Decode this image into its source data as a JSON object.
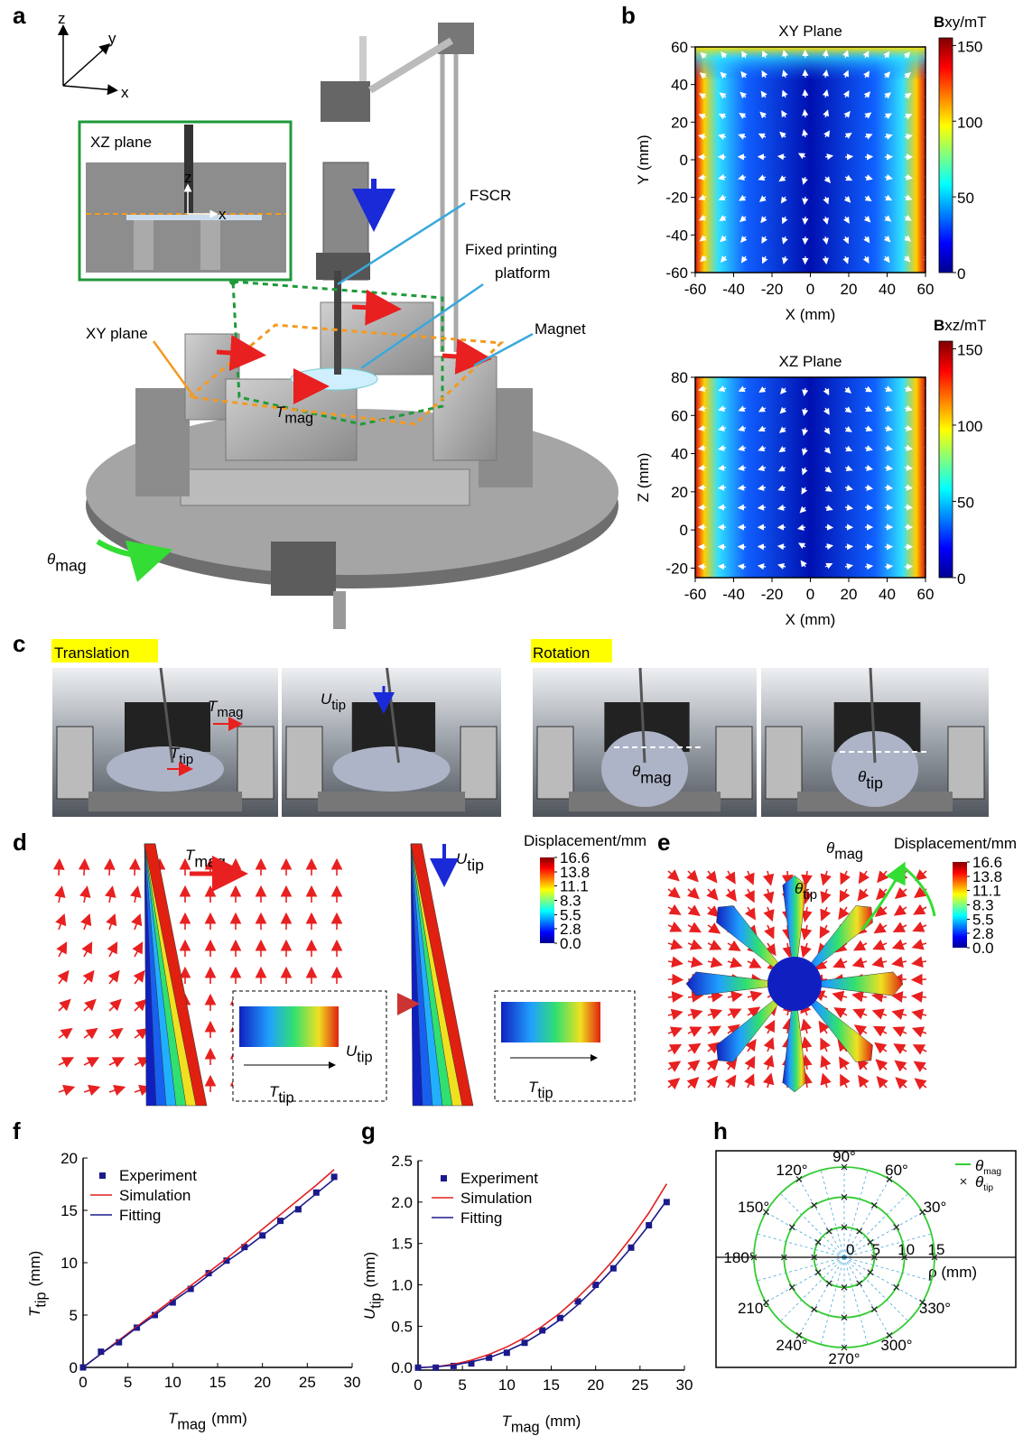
{
  "panel_labels": [
    "a",
    "b",
    "c",
    "d",
    "e",
    "f",
    "g",
    "h"
  ],
  "a": {
    "axes": [
      "z",
      "y",
      "x"
    ],
    "inset_title": "XZ plane",
    "inset_axes": [
      "z",
      "x"
    ],
    "fscr": "FSCR",
    "platform": [
      "Fixed printing",
      "platform"
    ],
    "magnet": "Magnet",
    "xy_plane": "XY plane",
    "t_mag": {
      "symbol": "T",
      "sub": "mag"
    },
    "theta_mag": {
      "symbol": "θ",
      "sub": "mag"
    }
  },
  "c": {
    "translation": "Translation",
    "rotation": "Rotation",
    "t_mag": {
      "symbol": "T",
      "sub": "mag"
    },
    "t_tip": {
      "symbol": "T",
      "sub": "tip"
    },
    "u_tip": {
      "symbol": "U",
      "sub": "tip"
    },
    "theta_mag": {
      "symbol": "θ",
      "sub": "mag"
    },
    "theta_tip": {
      "symbol": "θ",
      "sub": "tip"
    }
  },
  "d": {
    "t_mag": {
      "symbol": "T",
      "sub": "mag"
    },
    "u_tip": {
      "symbol": "U",
      "sub": "tip"
    },
    "inset_left": {
      "u_tip": {
        "symbol": "U",
        "sub": "tip"
      },
      "t_tip": {
        "symbol": "T",
        "sub": "tip"
      }
    },
    "inset_right": {
      "t_tip": {
        "symbol": "T",
        "sub": "tip"
      }
    },
    "colorbar": {
      "title": "Displacement/mm",
      "lim": [
        0,
        16.6
      ],
      "ticks": [
        16.6,
        13.8,
        11.1,
        8.3,
        5.5,
        2.8,
        {
          "value": 0,
          "label": "0.0"
        }
      ]
    }
  },
  "e": {
    "theta_mag": {
      "symbol": "θ",
      "sub": "mag"
    },
    "theta_tip": {
      "symbol": "θ",
      "sub": "tip"
    },
    "colorbar": {
      "title": "Displacement/mm",
      "lim": [
        0,
        16.6
      ],
      "ticks": [
        16.6,
        13.8,
        11.1,
        8.3,
        5.5,
        2.8,
        {
          "value": 0,
          "label": "0.0"
        }
      ]
    }
  },
  "chart_data": [
    {
      "type": "heatmap",
      "title": "XY Plane",
      "xlabel": "X (mm)",
      "ylabel": "Y (mm)",
      "xlim": [
        -60,
        60
      ],
      "ylim": [
        -60,
        60
      ],
      "xticks": [
        -60,
        -40,
        -20,
        0,
        20,
        40,
        60
      ],
      "yticks": [
        -60,
        -40,
        -20,
        0,
        20,
        40,
        60
      ],
      "colorbar_label": {
        "bold": "B",
        "rest": "xy/mT"
      },
      "clim": [
        0,
        155
      ],
      "cticks": [
        0,
        50,
        100,
        150
      ]
    },
    {
      "type": "heatmap",
      "title": "XZ Plane",
      "xlabel": "X (mm)",
      "ylabel": "Z (mm)",
      "xlim": [
        -60,
        60
      ],
      "ylim": [
        -25,
        80
      ],
      "xticks": [
        -60,
        -40,
        -20,
        0,
        20,
        40,
        60
      ],
      "yticks": [
        -20,
        0,
        20,
        40,
        60,
        80
      ],
      "colorbar_label": {
        "bold": "B",
        "rest": "xz/mT"
      },
      "clim": [
        0,
        155
      ],
      "cticks": [
        0,
        50,
        100,
        150
      ]
    },
    {
      "type": "line",
      "xlabel": {
        "symbol": "T",
        "sub": "mag",
        "unit": "(mm)"
      },
      "ylabel": {
        "symbol": "T",
        "sub": "tip",
        "unit": "(mm)"
      },
      "xlim": [
        0,
        30
      ],
      "ylim": [
        0,
        20
      ],
      "xticks": [
        0,
        5,
        10,
        15,
        20,
        25,
        30
      ],
      "yticks": [
        0,
        5,
        10,
        15,
        20
      ],
      "x": [
        0,
        2,
        4,
        6,
        8,
        10,
        12,
        14,
        16,
        18,
        20,
        22,
        24,
        26,
        28
      ],
      "series": [
        {
          "name": "Experiment",
          "color": "#1a1a8c",
          "style": "points",
          "values": [
            0,
            1.5,
            2.4,
            3.8,
            5.0,
            6.2,
            7.5,
            9.0,
            10.2,
            11.5,
            12.6,
            14.0,
            15.1,
            16.7,
            18.2
          ]
        },
        {
          "name": "Simulation",
          "color": "#e02020",
          "style": "line",
          "values": [
            0,
            1.3,
            2.6,
            3.9,
            5.2,
            6.5,
            7.8,
            9.1,
            10.4,
            11.8,
            13.2,
            14.6,
            16.0,
            17.4,
            18.9
          ]
        },
        {
          "name": "Fitting",
          "color": "#1a1a8c",
          "style": "line",
          "values": [
            0,
            1.3,
            2.5,
            3.8,
            5.0,
            6.3,
            7.5,
            8.8,
            10.1,
            11.3,
            12.6,
            13.9,
            15.2,
            16.6,
            18.0
          ]
        }
      ]
    },
    {
      "type": "line",
      "xlabel": {
        "symbol": "T",
        "sub": "mag",
        "unit": "(mm)"
      },
      "ylabel": {
        "symbol": "U",
        "sub": "tip",
        "unit": "(mm)"
      },
      "xlim": [
        0,
        30
      ],
      "ylim": [
        -0.03,
        2.5
      ],
      "xticks": [
        0,
        5,
        10,
        15,
        20,
        25,
        30
      ],
      "yticks": [
        {
          "value": 0,
          "label": "0.0"
        },
        {
          "value": 0.5,
          "label": "0.5"
        },
        {
          "value": 1,
          "label": "1.0"
        },
        {
          "value": 1.5,
          "label": "1.5"
        },
        {
          "value": 2,
          "label": "2.0"
        },
        {
          "value": 2.5,
          "label": "2.5"
        }
      ],
      "x": [
        0,
        2,
        4,
        6,
        8,
        10,
        12,
        14,
        16,
        18,
        20,
        22,
        24,
        26,
        28
      ],
      "series": [
        {
          "name": "Experiment",
          "color": "#1a1a8c",
          "style": "points",
          "values": [
            0,
            0,
            0.02,
            0.05,
            0.12,
            0.18,
            0.3,
            0.45,
            0.6,
            0.8,
            1.0,
            1.2,
            1.45,
            1.72,
            2.0
          ]
        },
        {
          "name": "Simulation",
          "color": "#e02020",
          "style": "line",
          "values": [
            0,
            0.01,
            0.04,
            0.09,
            0.16,
            0.25,
            0.36,
            0.5,
            0.66,
            0.85,
            1.06,
            1.3,
            1.57,
            1.87,
            2.22
          ]
        },
        {
          "name": "Fitting",
          "color": "#1a1a8c",
          "style": "line",
          "values": [
            0,
            0.01,
            0.03,
            0.07,
            0.12,
            0.2,
            0.3,
            0.43,
            0.58,
            0.76,
            0.97,
            1.2,
            1.45,
            1.72,
            2.02
          ]
        }
      ]
    },
    {
      "type": "polar",
      "rlabel": "ρ (mm)",
      "rlim": [
        0,
        15
      ],
      "rticks": [
        0,
        5,
        10,
        15
      ],
      "thetaticks": [
        {
          "value": 30,
          "label": "30°"
        },
        {
          "value": 60,
          "label": "60°"
        },
        {
          "value": 90,
          "label": "90°"
        },
        {
          "value": 120,
          "label": "120°"
        },
        {
          "value": 150,
          "label": "150°"
        },
        {
          "value": 180,
          "label": "180°"
        },
        {
          "value": 210,
          "label": "210°"
        },
        {
          "value": 240,
          "label": "240°"
        },
        {
          "value": 270,
          "label": "270°"
        },
        {
          "value": 300,
          "label": "300°"
        },
        {
          "value": 330,
          "label": "330°"
        }
      ],
      "series": [
        {
          "name": {
            "symbol": "θ",
            "sub": "mag"
          },
          "color": "#33cc33",
          "style": "rings",
          "rho": [
            5,
            10,
            15
          ]
        },
        {
          "name": {
            "symbol": "θ",
            "sub": "tip"
          },
          "color": "#222222",
          "style": "crosses",
          "theta": [
            0,
            30,
            60,
            90,
            120,
            150,
            180,
            210,
            240,
            270,
            300,
            330,
            0,
            30,
            60,
            90,
            120,
            150,
            180,
            210,
            240,
            270,
            300,
            330,
            0,
            30,
            60,
            90,
            120,
            150,
            180,
            210,
            240,
            270,
            300,
            330
          ],
          "rho": [
            5,
            5,
            5,
            5,
            5,
            5,
            5,
            5,
            5,
            5,
            5,
            5,
            10,
            10,
            10,
            10,
            10,
            10,
            10,
            10,
            10,
            10,
            10,
            10,
            15,
            15,
            15,
            15,
            15,
            15,
            15,
            15,
            15,
            15,
            15,
            15
          ]
        }
      ]
    }
  ]
}
